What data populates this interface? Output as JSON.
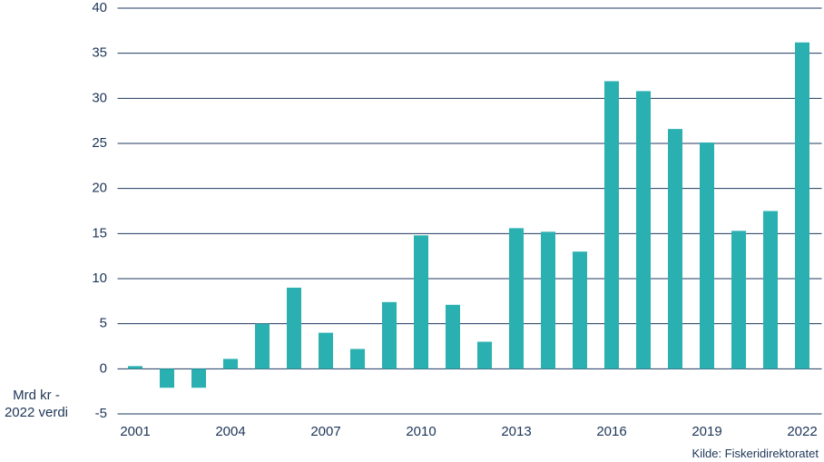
{
  "chart_data": {
    "type": "bar",
    "y_label": "Mrd kr - 2022 verdi",
    "source": "Kilde: Fiskeridirektoratet",
    "categories": [
      "2001",
      null,
      null,
      "2004",
      null,
      null,
      "2007",
      null,
      null,
      "2010",
      null,
      null,
      "2013",
      null,
      null,
      "2016",
      null,
      null,
      "2019",
      null,
      null,
      "2022"
    ],
    "values": [
      0.3,
      -2.1,
      -2.1,
      1.1,
      5.0,
      9.0,
      4.0,
      2.2,
      7.4,
      14.8,
      7.1,
      3.0,
      15.6,
      15.2,
      13.0,
      31.9,
      30.8,
      26.6,
      25.1,
      15.3,
      17.5,
      36.2
    ],
    "color": "#2ab0b0",
    "ylim": [
      -5,
      40
    ],
    "yticks": [
      -5,
      0,
      5,
      10,
      15,
      20,
      25,
      30,
      35,
      40
    ],
    "grid": true
  }
}
